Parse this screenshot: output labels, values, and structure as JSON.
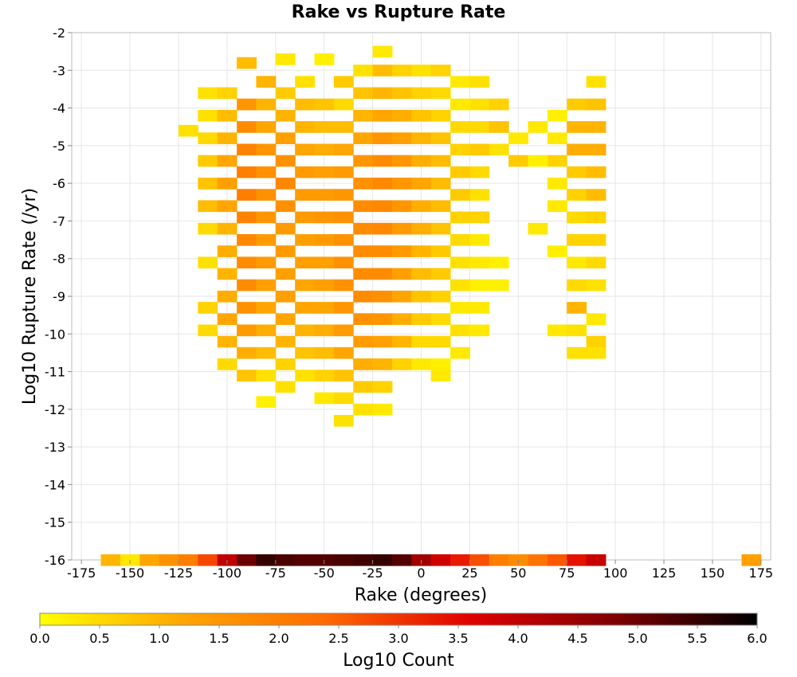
{
  "chart_data": {
    "type": "heatmap",
    "title": "Rake vs Rupture Rate",
    "xlabel": "Rake (degrees)",
    "ylabel": "Log10 Rupture Rate (/yr)",
    "colorbar_label": "Log10 Count",
    "xlim": [
      -180,
      180
    ],
    "ylim": [
      -16,
      -2
    ],
    "xticks": [
      -175,
      -150,
      -125,
      -100,
      -75,
      -50,
      -25,
      0,
      25,
      50,
      75,
      100,
      125,
      150,
      175
    ],
    "yticks": [
      -2,
      -3,
      -4,
      -5,
      -6,
      -7,
      -8,
      -9,
      -10,
      -11,
      -12,
      -13,
      -14,
      -15,
      -16
    ],
    "colorbar_range": [
      0,
      6
    ],
    "colorbar_ticks": [
      "0.0",
      "0.5",
      "1.0",
      "1.5",
      "2.0",
      "2.5",
      "3.0",
      "3.5",
      "4.0",
      "4.5",
      "5.0",
      "5.5",
      "6.0"
    ],
    "colorbar_colors": [
      "#ffff00",
      "#ffa500",
      "#ff6a00",
      "#e00000",
      "#800000",
      "#000000"
    ],
    "grid": true,
    "x_bin_width": 10,
    "y_bin_height": 0.3,
    "cells": [
      [
        -160,
        -16,
        1.0
      ],
      [
        -150,
        -16,
        0.3
      ],
      [
        -140,
        -16,
        1.2
      ],
      [
        -130,
        -16,
        1.6
      ],
      [
        -120,
        -16,
        2.0
      ],
      [
        -110,
        -16,
        2.8
      ],
      [
        -100,
        -16,
        4.0
      ],
      [
        -90,
        -16,
        5.0
      ],
      [
        -80,
        -16,
        5.5
      ],
      [
        -70,
        -16,
        5.3
      ],
      [
        -60,
        -16,
        5.2
      ],
      [
        -50,
        -16,
        5.2
      ],
      [
        -40,
        -16,
        5.3
      ],
      [
        -30,
        -16,
        5.4
      ],
      [
        -20,
        -16,
        5.5
      ],
      [
        -10,
        -16,
        5.2
      ],
      [
        0,
        -16,
        4.4
      ],
      [
        10,
        -16,
        3.8
      ],
      [
        20,
        -16,
        3.3
      ],
      [
        30,
        -16,
        2.7
      ],
      [
        40,
        -16,
        2.0
      ],
      [
        50,
        -16,
        1.7
      ],
      [
        60,
        -16,
        2.2
      ],
      [
        70,
        -16,
        2.6
      ],
      [
        80,
        -16,
        3.4
      ],
      [
        90,
        -16,
        3.9
      ],
      [
        170,
        -16,
        1.3
      ],
      [
        -120,
        -4.6,
        0.4
      ],
      [
        -80,
        -11.8,
        0.2
      ],
      [
        -40,
        -12.3,
        0.4
      ],
      [
        -90,
        -2.8,
        0.9
      ],
      [
        -70,
        -2.7,
        0.3
      ],
      [
        -50,
        -2.7,
        0.2
      ],
      [
        -30,
        -3.0,
        0.4
      ],
      [
        -20,
        -2.5,
        0.3
      ],
      [
        -20,
        -3.0,
        0.9
      ],
      [
        -10,
        -3.0,
        0.6
      ],
      [
        0,
        -3.0,
        0.4
      ],
      [
        10,
        -3.0,
        0.6
      ],
      [
        20,
        -3.3,
        0.3
      ],
      [
        30,
        -3.3,
        0.4
      ],
      [
        -40,
        -3.3,
        0.7
      ],
      [
        -60,
        -3.3,
        0.4
      ],
      [
        -80,
        -3.3,
        1.0
      ],
      [
        -110,
        -3.6,
        0.4
      ],
      [
        -100,
        -3.6,
        0.6
      ],
      [
        -110,
        -4.2,
        0.4
      ],
      [
        -100,
        -4.2,
        0.9
      ],
      [
        -110,
        -4.8,
        0.5
      ],
      [
        -100,
        -4.8,
        1.0
      ],
      [
        30,
        -3.9,
        0.4
      ],
      [
        40,
        -3.9,
        0.6
      ],
      [
        30,
        -4.5,
        0.5
      ],
      [
        40,
        -4.5,
        0.8
      ],
      [
        50,
        -4.8,
        0.3
      ],
      [
        50,
        -5.4,
        0.7
      ],
      [
        60,
        -4.5,
        0.3
      ],
      [
        70,
        -4.2,
        0.2
      ],
      [
        70,
        -4.8,
        0.3
      ],
      [
        70,
        -5.4,
        0.6
      ],
      [
        80,
        -3.9,
        0.7
      ],
      [
        90,
        -3.3,
        0.4
      ],
      [
        90,
        -3.9,
        0.8
      ],
      [
        90,
        -4.5,
        1.0
      ],
      [
        90,
        -5.1,
        1.1
      ],
      [
        80,
        -4.5,
        1.0
      ],
      [
        80,
        -5.1,
        1.1
      ],
      [
        80,
        -5.7,
        0.7
      ],
      [
        80,
        -6.3,
        0.6
      ],
      [
        90,
        -5.7,
        0.9
      ],
      [
        90,
        -6.3,
        0.9
      ],
      [
        60,
        -5.4,
        0.2
      ],
      [
        40,
        -5.1,
        0.4
      ],
      [
        30,
        -5.1,
        0.7
      ],
      [
        30,
        -5.7,
        0.5
      ],
      [
        30,
        -6.3,
        0.4
      ],
      [
        60,
        -7.2,
        0.3
      ],
      [
        70,
        -6.0,
        0.3
      ],
      [
        70,
        -6.6,
        0.3
      ],
      [
        70,
        -7.8,
        0.2
      ],
      [
        80,
        -6.9,
        0.5
      ],
      [
        80,
        -7.5,
        0.6
      ],
      [
        90,
        -6.9,
        0.6
      ],
      [
        90,
        -7.5,
        0.6
      ],
      [
        80,
        -8.1,
        0.3
      ],
      [
        80,
        -8.7,
        0.5
      ],
      [
        90,
        -8.1,
        0.5
      ],
      [
        90,
        -8.7,
        0.4
      ],
      [
        80,
        -9.3,
        1.0
      ],
      [
        90,
        -9.6,
        0.3
      ],
      [
        90,
        -10.2,
        0.6
      ],
      [
        70,
        -9.9,
        0.3
      ],
      [
        80,
        -9.9,
        0.4
      ],
      [
        80,
        -10.5,
        0.4
      ],
      [
        90,
        -10.5,
        0.4
      ],
      [
        -110,
        -5.4,
        0.7
      ],
      [
        -110,
        -6.0,
        0.8
      ],
      [
        -110,
        -6.6,
        0.9
      ],
      [
        -110,
        -7.2,
        0.5
      ],
      [
        -110,
        -8.1,
        0.4
      ],
      [
        -110,
        -9.3,
        0.6
      ],
      [
        -110,
        -9.9,
        0.5
      ],
      [
        -100,
        -5.4,
        1.2
      ],
      [
        -100,
        -6.0,
        1.3
      ],
      [
        -100,
        -6.6,
        1.2
      ],
      [
        -100,
        -7.2,
        1.0
      ],
      [
        -100,
        -7.8,
        1.1
      ],
      [
        -100,
        -8.4,
        1.0
      ],
      [
        -100,
        -9.0,
        1.1
      ],
      [
        -100,
        -9.6,
        1.2
      ],
      [
        -100,
        -10.2,
        1.0
      ],
      [
        -100,
        -10.8,
        0.5
      ],
      [
        -90,
        -3.9,
        1.5
      ],
      [
        -90,
        -4.5,
        1.7
      ],
      [
        -90,
        -5.1,
        1.9
      ],
      [
        -90,
        -5.7,
        2.0
      ],
      [
        -90,
        -6.3,
        2.0
      ],
      [
        -90,
        -6.9,
        1.9
      ],
      [
        -90,
        -7.5,
        1.8
      ],
      [
        -90,
        -8.1,
        1.7
      ],
      [
        -90,
        -8.7,
        1.7
      ],
      [
        -90,
        -9.3,
        1.6
      ],
      [
        -90,
        -9.9,
        1.4
      ],
      [
        -90,
        -10.5,
        1.1
      ],
      [
        -90,
        -11.1,
        0.8
      ],
      [
        -80,
        -3.9,
        1.0
      ],
      [
        -80,
        -4.5,
        1.2
      ],
      [
        -80,
        -5.1,
        1.5
      ],
      [
        -80,
        -5.7,
        1.6
      ],
      [
        -80,
        -6.3,
        1.6
      ],
      [
        -80,
        -6.9,
        1.5
      ],
      [
        -80,
        -7.5,
        1.4
      ],
      [
        -80,
        -8.1,
        1.4
      ],
      [
        -80,
        -8.7,
        1.3
      ],
      [
        -80,
        -9.3,
        1.2
      ],
      [
        -80,
        -9.9,
        1.1
      ],
      [
        -80,
        -10.5,
        0.9
      ],
      [
        -80,
        -11.1,
        0.4
      ],
      [
        -70,
        -3.6,
        0.7
      ],
      [
        -70,
        -4.2,
        1.0
      ],
      [
        -70,
        -4.8,
        1.3
      ],
      [
        -70,
        -5.4,
        1.6
      ],
      [
        -70,
        -6.0,
        1.8
      ],
      [
        -70,
        -6.6,
        1.6
      ],
      [
        -70,
        -7.2,
        1.4
      ],
      [
        -70,
        -7.8,
        1.4
      ],
      [
        -70,
        -8.4,
        1.3
      ],
      [
        -70,
        -9.0,
        1.3
      ],
      [
        -70,
        -9.6,
        1.2
      ],
      [
        -70,
        -10.2,
        1.0
      ],
      [
        -70,
        -10.8,
        0.6
      ],
      [
        -70,
        -11.4,
        0.4
      ],
      [
        -60,
        -3.9,
        0.9
      ],
      [
        -60,
        -4.5,
        1.0
      ],
      [
        -60,
        -5.1,
        1.2
      ],
      [
        -60,
        -5.7,
        1.4
      ],
      [
        -60,
        -6.3,
        1.4
      ],
      [
        -60,
        -6.9,
        1.4
      ],
      [
        -60,
        -7.5,
        1.3
      ],
      [
        -60,
        -8.1,
        1.3
      ],
      [
        -60,
        -8.7,
        1.2
      ],
      [
        -60,
        -9.3,
        1.2
      ],
      [
        -60,
        -9.9,
        1.0
      ],
      [
        -60,
        -10.5,
        0.8
      ],
      [
        -60,
        -11.1,
        0.4
      ],
      [
        -50,
        -3.9,
        0.8
      ],
      [
        -50,
        -4.5,
        0.9
      ],
      [
        -50,
        -5.1,
        1.1
      ],
      [
        -50,
        -5.7,
        1.3
      ],
      [
        -50,
        -6.3,
        1.4
      ],
      [
        -50,
        -6.9,
        1.5
      ],
      [
        -50,
        -7.5,
        1.4
      ],
      [
        -50,
        -8.1,
        1.3
      ],
      [
        -50,
        -8.7,
        1.3
      ],
      [
        -50,
        -9.3,
        1.2
      ],
      [
        -50,
        -9.9,
        1.1
      ],
      [
        -50,
        -10.5,
        0.9
      ],
      [
        -50,
        -11.1,
        0.6
      ],
      [
        -50,
        -11.7,
        0.3
      ],
      [
        -40,
        -3.9,
        0.5
      ],
      [
        -40,
        -4.5,
        0.9
      ],
      [
        -40,
        -5.1,
        1.2
      ],
      [
        -40,
        -5.7,
        1.4
      ],
      [
        -40,
        -6.3,
        1.5
      ],
      [
        -40,
        -6.9,
        1.6
      ],
      [
        -40,
        -7.5,
        1.6
      ],
      [
        -40,
        -8.1,
        1.6
      ],
      [
        -40,
        -8.7,
        1.6
      ],
      [
        -40,
        -9.3,
        1.5
      ],
      [
        -40,
        -9.9,
        1.4
      ],
      [
        -40,
        -10.5,
        1.2
      ],
      [
        -40,
        -11.1,
        0.8
      ],
      [
        -40,
        -11.7,
        0.5
      ],
      [
        -30,
        -3.6,
        0.8
      ],
      [
        -30,
        -4.2,
        1.0
      ],
      [
        -30,
        -4.8,
        1.2
      ],
      [
        -30,
        -5.4,
        1.5
      ],
      [
        -30,
        -6.0,
        1.6
      ],
      [
        -30,
        -6.6,
        1.7
      ],
      [
        -30,
        -7.2,
        1.7
      ],
      [
        -30,
        -7.8,
        1.7
      ],
      [
        -30,
        -8.4,
        1.7
      ],
      [
        -30,
        -9.0,
        1.7
      ],
      [
        -30,
        -9.6,
        1.6
      ],
      [
        -30,
        -10.2,
        1.4
      ],
      [
        -30,
        -10.8,
        1.1
      ],
      [
        -30,
        -11.4,
        0.7
      ],
      [
        -30,
        -12.0,
        0.4
      ],
      [
        -20,
        -3.6,
        1.0
      ],
      [
        -20,
        -4.2,
        1.2
      ],
      [
        -20,
        -4.8,
        1.5
      ],
      [
        -20,
        -5.4,
        1.7
      ],
      [
        -20,
        -6.0,
        1.8
      ],
      [
        -20,
        -6.6,
        1.8
      ],
      [
        -20,
        -7.2,
        1.8
      ],
      [
        -20,
        -7.8,
        1.7
      ],
      [
        -20,
        -8.4,
        1.7
      ],
      [
        -20,
        -9.0,
        1.6
      ],
      [
        -20,
        -9.6,
        1.5
      ],
      [
        -20,
        -10.2,
        1.3
      ],
      [
        -20,
        -10.8,
        1.0
      ],
      [
        -20,
        -11.4,
        0.6
      ],
      [
        -20,
        -12.0,
        0.3
      ],
      [
        -10,
        -3.6,
        0.8
      ],
      [
        -10,
        -4.2,
        1.1
      ],
      [
        -10,
        -4.8,
        1.3
      ],
      [
        -10,
        -5.4,
        1.5
      ],
      [
        -10,
        -6.0,
        1.5
      ],
      [
        -10,
        -6.6,
        1.5
      ],
      [
        -10,
        -7.2,
        1.4
      ],
      [
        -10,
        -7.8,
        1.4
      ],
      [
        -10,
        -8.4,
        1.3
      ],
      [
        -10,
        -9.0,
        1.2
      ],
      [
        -10,
        -9.6,
        1.1
      ],
      [
        -10,
        -10.2,
        1.0
      ],
      [
        -10,
        -10.8,
        0.6
      ],
      [
        0,
        -3.6,
        0.6
      ],
      [
        0,
        -4.2,
        0.8
      ],
      [
        0,
        -4.8,
        1.0
      ],
      [
        0,
        -5.4,
        1.1
      ],
      [
        0,
        -6.0,
        1.2
      ],
      [
        0,
        -6.6,
        1.1
      ],
      [
        0,
        -7.2,
        1.1
      ],
      [
        0,
        -7.8,
        1.0
      ],
      [
        0,
        -8.4,
        0.9
      ],
      [
        0,
        -9.0,
        0.8
      ],
      [
        0,
        -9.6,
        0.7
      ],
      [
        0,
        -10.2,
        0.5
      ],
      [
        0,
        -10.8,
        0.3
      ],
      [
        10,
        -3.6,
        0.5
      ],
      [
        10,
        -4.2,
        0.6
      ],
      [
        10,
        -4.8,
        0.8
      ],
      [
        10,
        -5.4,
        0.9
      ],
      [
        10,
        -6.0,
        0.9
      ],
      [
        10,
        -6.6,
        0.9
      ],
      [
        10,
        -7.2,
        0.8
      ],
      [
        10,
        -7.8,
        0.7
      ],
      [
        10,
        -8.4,
        0.7
      ],
      [
        10,
        -9.0,
        0.6
      ],
      [
        10,
        -9.6,
        0.5
      ],
      [
        10,
        -10.2,
        0.5
      ],
      [
        10,
        -10.8,
        0.2
      ],
      [
        10,
        -11.1,
        0.3
      ],
      [
        20,
        -3.9,
        0.3
      ],
      [
        20,
        -4.5,
        0.5
      ],
      [
        20,
        -5.1,
        0.6
      ],
      [
        20,
        -5.7,
        0.7
      ],
      [
        20,
        -6.3,
        0.7
      ],
      [
        20,
        -6.9,
        0.6
      ],
      [
        20,
        -7.5,
        0.5
      ],
      [
        20,
        -8.1,
        0.4
      ],
      [
        20,
        -8.7,
        0.4
      ],
      [
        20,
        -9.3,
        0.3
      ],
      [
        20,
        -9.9,
        0.4
      ],
      [
        20,
        -10.5,
        0.3
      ],
      [
        30,
        -6.9,
        0.6
      ],
      [
        30,
        -7.5,
        0.3
      ],
      [
        30,
        -8.1,
        0.3
      ],
      [
        30,
        -8.7,
        0.2
      ],
      [
        30,
        -9.3,
        0.3
      ],
      [
        30,
        -9.9,
        0.3
      ],
      [
        40,
        -8.1,
        0.2
      ],
      [
        40,
        -8.7,
        0.2
      ]
    ]
  }
}
